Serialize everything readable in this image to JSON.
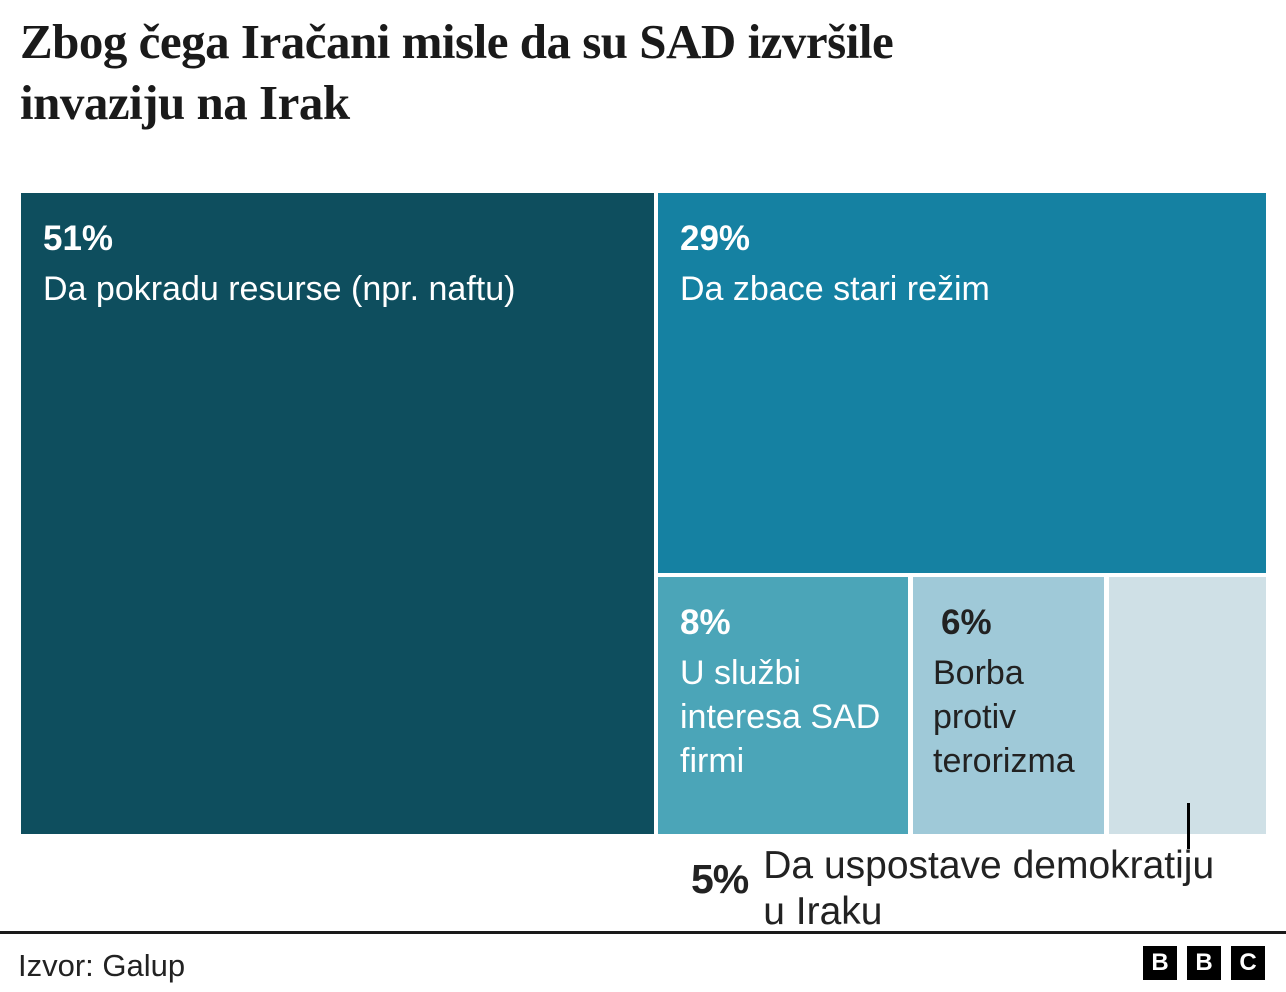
{
  "header": {
    "title_line1": "Zbog čega Iračani misle da su SAD izvršile",
    "title_line2": "invaziju na Irak"
  },
  "chart_data": {
    "type": "treemap",
    "title": "Zbog čega Iračani misle da su SAD izvršile invaziju na Irak",
    "unit": "%",
    "items": [
      {
        "label": "Da pokradu resurse (npr. naftu)",
        "value": 51,
        "pct": "51%",
        "color": "#0e4e5e",
        "text_color": "#ffffff"
      },
      {
        "label": "Da zbace stari režim",
        "value": 29,
        "pct": "29%",
        "color": "#1581a2",
        "text_color": "#ffffff"
      },
      {
        "label": "U službi interesa SAD firmi",
        "value": 8,
        "pct": "8%",
        "color": "#4ba5b8",
        "text_color": "#ffffff"
      },
      {
        "label": "Borba protiv terorizma",
        "value": 6,
        "pct": "6%",
        "color": "#9fc9d8",
        "text_color": "#222222"
      },
      {
        "label": "Da uspostave demokratiju u Iraku",
        "value": 5,
        "pct": "5%",
        "color": "#cfe0e6",
        "text_color": "#222222",
        "label_outside": true
      }
    ],
    "legend": "none",
    "source": "Izvor: Galup"
  },
  "callout": {
    "pct": "5%",
    "line1": "Da uspostave demokratiju",
    "line2": "u Iraku"
  },
  "footer": {
    "source": "Izvor: Galup",
    "logo_letters": {
      "b1": "B",
      "b2": "B",
      "b3": "C"
    }
  }
}
